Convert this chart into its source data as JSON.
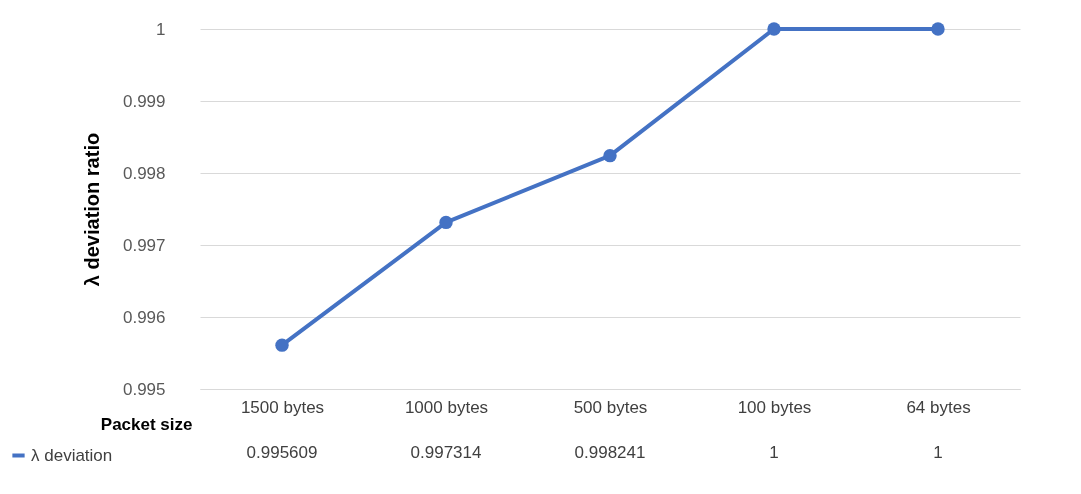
{
  "chart_data": {
    "type": "line",
    "xlabel": "Packet size",
    "ylabel": "λ deviation ratio",
    "categories": [
      "1500 bytes",
      "1000 bytes",
      "500 bytes",
      "100 bytes",
      "64 bytes"
    ],
    "series": [
      {
        "name": "λ deviation",
        "color": "#4472c4",
        "values": [
          0.995609,
          0.997314,
          0.998241,
          1,
          1
        ]
      }
    ],
    "ylim": [
      0.995,
      1
    ],
    "yticks": [
      0.995,
      0.996,
      0.997,
      0.998,
      0.999,
      1
    ],
    "grid": "y",
    "marker": "circle",
    "line_style": "solid",
    "data_labels": true,
    "legend": "bottom left"
  }
}
